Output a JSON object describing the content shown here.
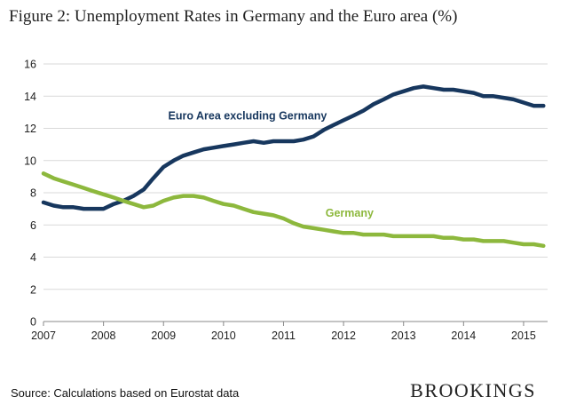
{
  "title": "Figure 2: Unemployment Rates in Germany and the Euro area (%)",
  "source": "Source: Calculations based on Eurostat data",
  "brand": "BROOKINGS",
  "chart_data": {
    "type": "line",
    "title": "Figure 2: Unemployment Rates in Germany and the Euro area (%)",
    "xlabel": "",
    "ylabel": "",
    "xlim": [
      2007,
      2015.33
    ],
    "ylim": [
      0,
      16
    ],
    "x_ticks": [
      2007,
      2008,
      2009,
      2010,
      2011,
      2012,
      2013,
      2014,
      2015
    ],
    "x_tick_labels": [
      "2007",
      "2008",
      "2009",
      "2010",
      "2011",
      "2012",
      "2013",
      "2014",
      "2015"
    ],
    "y_ticks": [
      0,
      2,
      4,
      6,
      8,
      10,
      12,
      14,
      16
    ],
    "y_tick_labels": [
      "0",
      "2",
      "4",
      "6",
      "8",
      "10",
      "12",
      "14",
      "16"
    ],
    "grid": "horizontal",
    "legend": "inline-labels",
    "series": [
      {
        "name": "Euro Area excluding Germany",
        "color": "#17375e",
        "x": [
          2007.0,
          2007.17,
          2007.33,
          2007.5,
          2007.67,
          2007.83,
          2008.0,
          2008.17,
          2008.33,
          2008.5,
          2008.67,
          2008.83,
          2009.0,
          2009.17,
          2009.33,
          2009.5,
          2009.67,
          2009.83,
          2010.0,
          2010.17,
          2010.33,
          2010.5,
          2010.67,
          2010.83,
          2011.0,
          2011.17,
          2011.33,
          2011.5,
          2011.67,
          2011.83,
          2012.0,
          2012.17,
          2012.33,
          2012.5,
          2012.67,
          2012.83,
          2013.0,
          2013.17,
          2013.33,
          2013.5,
          2013.67,
          2013.83,
          2014.0,
          2014.17,
          2014.33,
          2014.5,
          2014.67,
          2014.83,
          2015.0,
          2015.17,
          2015.33
        ],
        "values": [
          7.4,
          7.2,
          7.1,
          7.1,
          7.0,
          7.0,
          7.0,
          7.3,
          7.5,
          7.8,
          8.2,
          8.9,
          9.6,
          10.0,
          10.3,
          10.5,
          10.7,
          10.8,
          10.9,
          11.0,
          11.1,
          11.2,
          11.1,
          11.2,
          11.2,
          11.2,
          11.3,
          11.5,
          11.9,
          12.2,
          12.5,
          12.8,
          13.1,
          13.5,
          13.8,
          14.1,
          14.3,
          14.5,
          14.6,
          14.5,
          14.4,
          14.4,
          14.3,
          14.2,
          14.0,
          14.0,
          13.9,
          13.8,
          13.6,
          13.4,
          13.4
        ]
      },
      {
        "name": "Germany",
        "color": "#8db83d",
        "x": [
          2007.0,
          2007.17,
          2007.33,
          2007.5,
          2007.67,
          2007.83,
          2008.0,
          2008.17,
          2008.33,
          2008.5,
          2008.67,
          2008.83,
          2009.0,
          2009.17,
          2009.33,
          2009.5,
          2009.67,
          2009.83,
          2010.0,
          2010.17,
          2010.33,
          2010.5,
          2010.67,
          2010.83,
          2011.0,
          2011.17,
          2011.33,
          2011.5,
          2011.67,
          2011.83,
          2012.0,
          2012.17,
          2012.33,
          2012.5,
          2012.67,
          2012.83,
          2013.0,
          2013.17,
          2013.33,
          2013.5,
          2013.67,
          2013.83,
          2014.0,
          2014.17,
          2014.33,
          2014.5,
          2014.67,
          2014.83,
          2015.0,
          2015.17,
          2015.33
        ],
        "values": [
          9.2,
          8.9,
          8.7,
          8.5,
          8.3,
          8.1,
          7.9,
          7.7,
          7.5,
          7.3,
          7.1,
          7.2,
          7.5,
          7.7,
          7.8,
          7.8,
          7.7,
          7.5,
          7.3,
          7.2,
          7.0,
          6.8,
          6.7,
          6.6,
          6.4,
          6.1,
          5.9,
          5.8,
          5.7,
          5.6,
          5.5,
          5.5,
          5.4,
          5.4,
          5.4,
          5.3,
          5.3,
          5.3,
          5.3,
          5.3,
          5.2,
          5.2,
          5.1,
          5.1,
          5.0,
          5.0,
          5.0,
          4.9,
          4.8,
          4.8,
          4.7
        ]
      }
    ]
  }
}
